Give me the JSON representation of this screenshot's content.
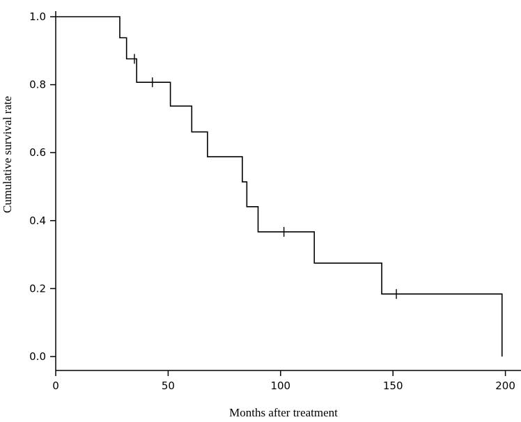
{
  "chart_data": {
    "type": "line",
    "subtype": "kaplan-meier-step",
    "xlabel": "Months after treatment",
    "ylabel": "Cumulative survival rate",
    "xlim": [
      0,
      205
    ],
    "ylim": [
      0,
      1.0
    ],
    "x_ticks": [
      0,
      50,
      100,
      150,
      200
    ],
    "y_ticks": [
      0.0,
      0.2,
      0.4,
      0.6,
      0.8,
      1.0
    ],
    "x_tick_labels": [
      "0",
      "50",
      "100",
      "150",
      "200"
    ],
    "y_tick_labels": [
      "0.0",
      "0.2",
      "0.4",
      "0.6",
      "0.8",
      "1.0"
    ],
    "grid": false,
    "series": [
      {
        "steps": [
          {
            "x": 0,
            "y": 1.0
          },
          {
            "x": 28.5,
            "y": 0.938
          },
          {
            "x": 31.5,
            "y": 0.876
          },
          {
            "x": 36,
            "y": 0.807
          },
          {
            "x": 51,
            "y": 0.737
          },
          {
            "x": 60.5,
            "y": 0.661
          },
          {
            "x": 67.5,
            "y": 0.588
          },
          {
            "x": 83,
            "y": 0.514
          },
          {
            "x": 85,
            "y": 0.441
          },
          {
            "x": 90,
            "y": 0.367
          },
          {
            "x": 115,
            "y": 0.275
          },
          {
            "x": 145,
            "y": 0.184
          },
          {
            "x": 198.5,
            "y": 0.0
          }
        ],
        "censored": [
          {
            "x": 35,
            "y": 0.876
          },
          {
            "x": 43,
            "y": 0.807
          },
          {
            "x": 101.5,
            "y": 0.367
          },
          {
            "x": 151.5,
            "y": 0.184
          }
        ]
      }
    ]
  }
}
